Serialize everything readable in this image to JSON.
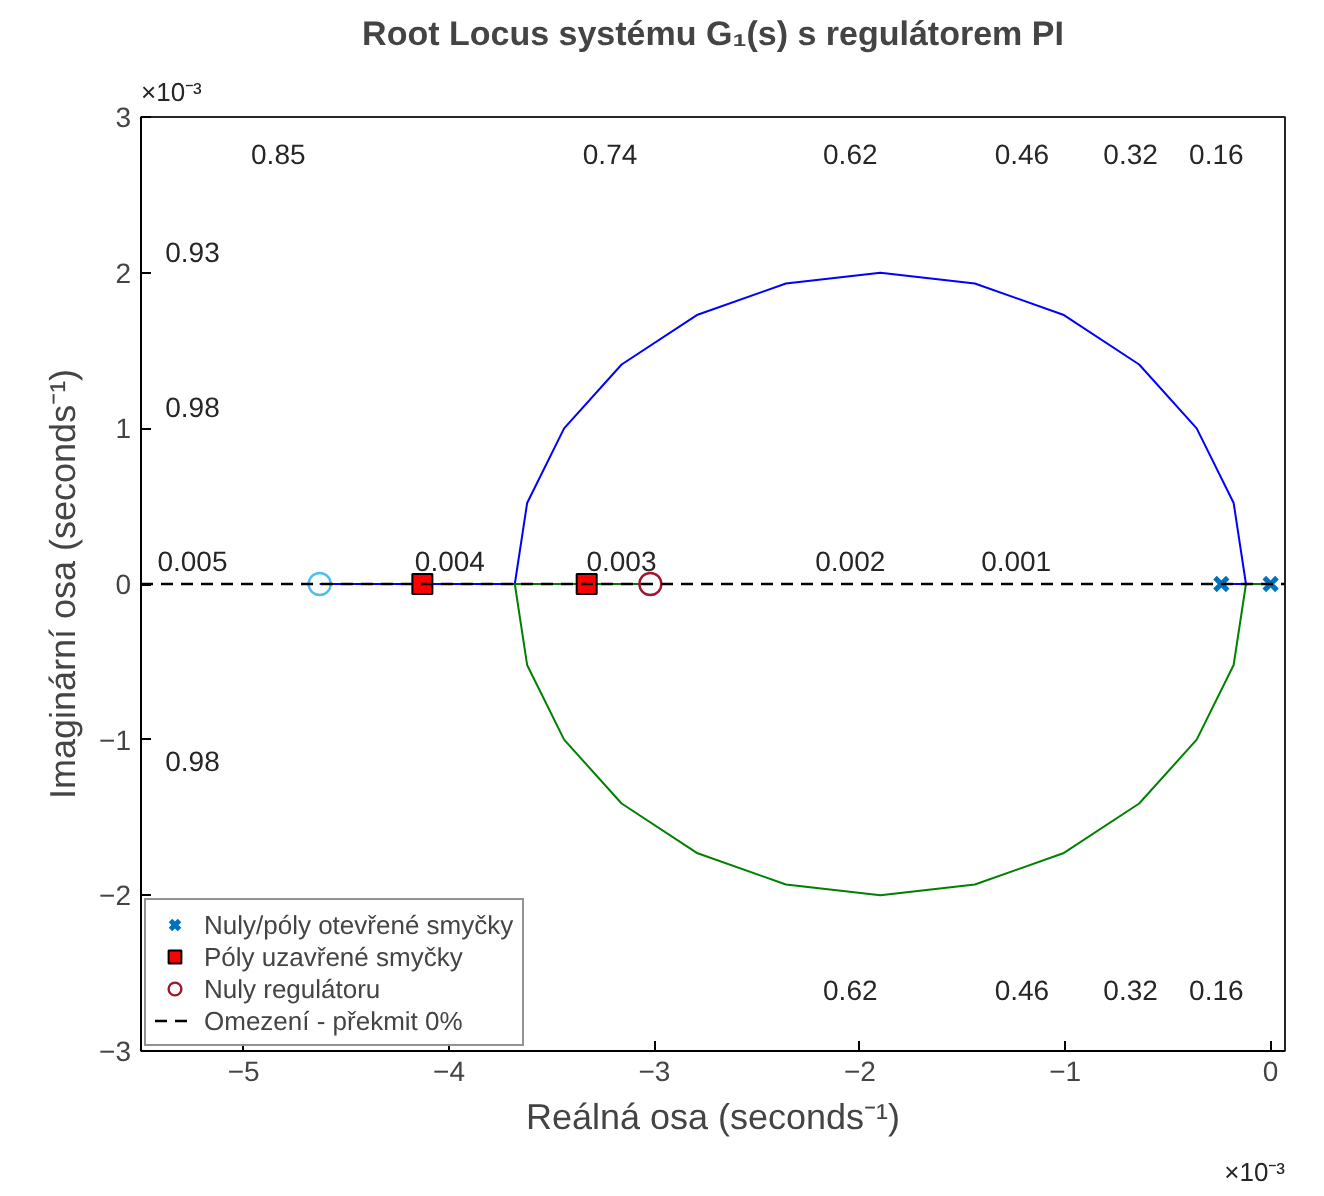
{
  "chart_data": {
    "type": "line",
    "title": "Root Locus systému G₁(s) s regulátorem PI",
    "xlabel": "Reálná osa (seconds⁻¹)",
    "ylabel": "Imaginární osa (seconds⁻¹)",
    "xlim": [
      -5.5,
      0.07
    ],
    "ylim": [
      -3,
      3
    ],
    "xticks": [
      -5,
      -4,
      -3,
      -2,
      -1,
      0
    ],
    "yticks": [
      -3,
      -2,
      -1,
      0,
      1,
      2,
      3
    ],
    "grid": false,
    "legend": "bottom left",
    "series": [
      {
        "color": "#0000ff",
        "x": [
          -0.24,
          -0.12,
          -0.18,
          -0.36,
          -0.64,
          -1.01,
          -1.44,
          -1.9,
          -2.36,
          -2.79,
          -3.16,
          -3.44,
          -3.62,
          -3.68,
          -4.63
        ],
        "values": [
          0,
          0,
          0.52,
          1.0,
          1.41,
          1.73,
          1.93,
          2.0,
          1.93,
          1.73,
          1.41,
          1.0,
          0.52,
          0,
          0
        ]
      },
      {
        "color": "#008000",
        "x": [
          0,
          -0.12,
          -0.18,
          -0.36,
          -0.64,
          -1.01,
          -1.44,
          -1.9,
          -2.36,
          -2.79,
          -3.16,
          -3.44,
          -3.62,
          -3.68,
          -3.02
        ],
        "values": [
          0,
          0,
          -0.52,
          -1.0,
          -1.41,
          -1.73,
          -1.93,
          -2.0,
          -1.93,
          -1.73,
          -1.41,
          -1.0,
          -0.52,
          0,
          0
        ]
      },
      {
        "type": "scatter",
        "name": "Nuly/póly otevřené smyčky",
        "color": "#0072bd",
        "marker": "cross",
        "x": [
          0,
          -0.24
        ],
        "values": [
          0,
          0
        ]
      },
      {
        "type": "scatter",
        "color": "#4dbeee",
        "marker": "circle",
        "x": [
          -4.63
        ],
        "values": [
          0
        ]
      },
      {
        "type": "scatter",
        "name": "Póly uzavřené smyčky",
        "color": "#ff0000",
        "marker": "square",
        "x": [
          -4.13,
          -3.33
        ],
        "values": [
          0,
          0
        ]
      },
      {
        "type": "scatter",
        "name": "Nuly regulátoru",
        "color": "#a2142f",
        "marker": "circle",
        "x": [
          -3.02
        ],
        "values": [
          0
        ]
      }
    ],
    "ref_lines": [
      {
        "axis": "y",
        "value": 0,
        "label": "Omezení - překmit 0%",
        "color": "#000000",
        "line_style": "dashed"
      }
    ],
    "annotations": [
      "×10⁻³",
      "×10⁻³",
      "0.85",
      "0.74",
      "0.62",
      "0.46",
      "0.32",
      "0.16",
      "0.93",
      "0.98",
      "0.005",
      "0.004",
      "0.003",
      "0.002",
      "0.001",
      "0.98",
      "0.62",
      "0.46",
      "0.32",
      "0.16"
    ]
  }
}
